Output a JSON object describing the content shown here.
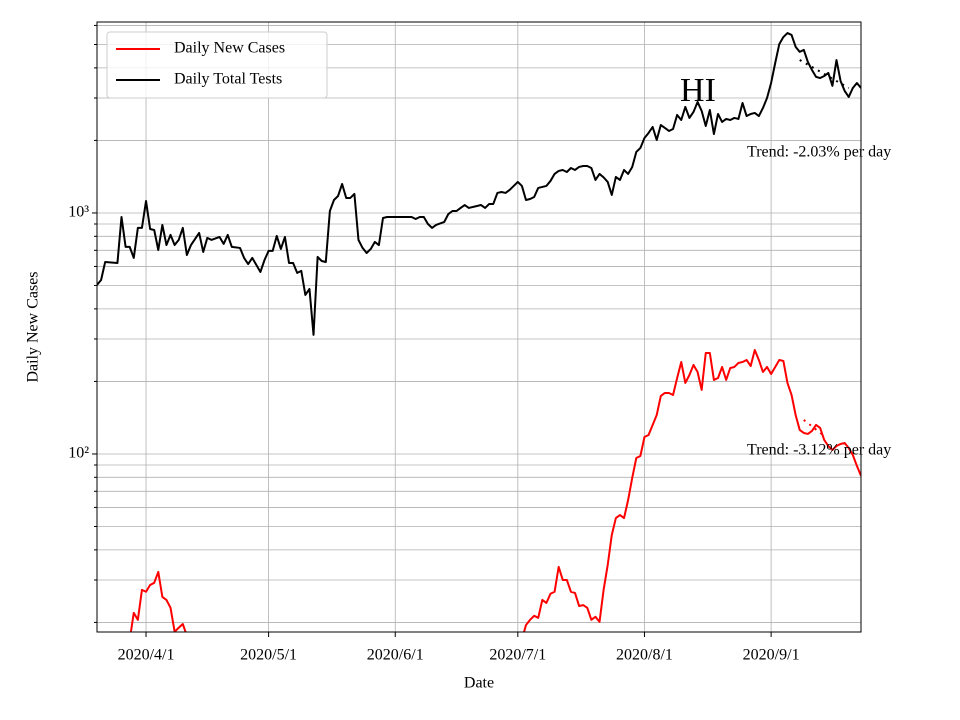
{
  "chart_data": {
    "type": "line",
    "title": "HI",
    "x_label": "Date",
    "y_label": "Daily New Cases",
    "log_y": true,
    "grid": true,
    "legend": "upper left",
    "xlim": [
      "2020-03-20",
      "2020-09-23"
    ],
    "xticks": [
      {
        "value": "2020-04-01",
        "label": "2020/4/1"
      },
      {
        "value": "2020-05-01",
        "label": "2020/5/1"
      },
      {
        "value": "2020-06-01",
        "label": "2020/6/1"
      },
      {
        "value": "2020-07-01",
        "label": "2020/7/1"
      },
      {
        "value": "2020-08-01",
        "label": "2020/8/1"
      },
      {
        "value": "2020-09-01",
        "label": "2020/9/1"
      }
    ],
    "ylim": [
      18.25,
      6200
    ],
    "yticks": [
      {
        "value": 100,
        "label": "10²"
      },
      {
        "value": 1000,
        "label": "10³"
      }
    ],
    "yminorticks": [
      20,
      30,
      40,
      50,
      60,
      70,
      80,
      90,
      200,
      300,
      400,
      500,
      600,
      700,
      800,
      900,
      2000,
      3000,
      4000,
      5000,
      6000
    ],
    "x": [
      "2020-03-20",
      "2020-03-21",
      "2020-03-22",
      "2020-03-25",
      "2020-03-26",
      "2020-03-27",
      "2020-03-28",
      "2020-03-29",
      "2020-03-30",
      "2020-03-31",
      "2020-04-01",
      "2020-04-02",
      "2020-04-03",
      "2020-04-04",
      "2020-04-05",
      "2020-04-06",
      "2020-04-07",
      "2020-04-08",
      "2020-04-09",
      "2020-04-10",
      "2020-04-11",
      "2020-04-12",
      "2020-04-14",
      "2020-04-15",
      "2020-04-16",
      "2020-04-17",
      "2020-04-19",
      "2020-04-20",
      "2020-04-21",
      "2020-04-22",
      "2020-04-24",
      "2020-04-25",
      "2020-04-26",
      "2020-04-27",
      "2020-04-29",
      "2020-04-30",
      "2020-05-01",
      "2020-05-02",
      "2020-05-03",
      "2020-05-04",
      "2020-05-05",
      "2020-05-06",
      "2020-05-07",
      "2020-05-08",
      "2020-05-09",
      "2020-05-10",
      "2020-05-11",
      "2020-05-12",
      "2020-05-13",
      "2020-05-14",
      "2020-05-15",
      "2020-05-16",
      "2020-05-17",
      "2020-05-18",
      "2020-05-19",
      "2020-05-20",
      "2020-05-21",
      "2020-05-22",
      "2020-05-23",
      "2020-05-24",
      "2020-05-25",
      "2020-05-26",
      "2020-05-27",
      "2020-05-28",
      "2020-05-29",
      "2020-05-30",
      "2020-06-01",
      "2020-06-03",
      "2020-06-05",
      "2020-06-06",
      "2020-06-07",
      "2020-06-08",
      "2020-06-09",
      "2020-06-10",
      "2020-06-11",
      "2020-06-13",
      "2020-06-14",
      "2020-06-15",
      "2020-06-16",
      "2020-06-17",
      "2020-06-18",
      "2020-06-19",
      "2020-06-21",
      "2020-06-22",
      "2020-06-23",
      "2020-06-24",
      "2020-06-25",
      "2020-06-26",
      "2020-06-27",
      "2020-06-28",
      "2020-06-29",
      "2020-06-30",
      "2020-07-01",
      "2020-07-02",
      "2020-07-03",
      "2020-07-04",
      "2020-07-05",
      "2020-07-06",
      "2020-07-07",
      "2020-07-08",
      "2020-07-09",
      "2020-07-10",
      "2020-07-11",
      "2020-07-12",
      "2020-07-13",
      "2020-07-14",
      "2020-07-15",
      "2020-07-16",
      "2020-07-17",
      "2020-07-18",
      "2020-07-19",
      "2020-07-20",
      "2020-07-21",
      "2020-07-22",
      "2020-07-23",
      "2020-07-24",
      "2020-07-25",
      "2020-07-26",
      "2020-07-27",
      "2020-07-28",
      "2020-07-29",
      "2020-07-30",
      "2020-07-31",
      "2020-08-01",
      "2020-08-02",
      "2020-08-03",
      "2020-08-04",
      "2020-08-05",
      "2020-08-06",
      "2020-08-07",
      "2020-08-08",
      "2020-08-09",
      "2020-08-10",
      "2020-08-11",
      "2020-08-12",
      "2020-08-13",
      "2020-08-14",
      "2020-08-15",
      "2020-08-16",
      "2020-08-17",
      "2020-08-18",
      "2020-08-19",
      "2020-08-20",
      "2020-08-21",
      "2020-08-22",
      "2020-08-23",
      "2020-08-24",
      "2020-08-25",
      "2020-08-26",
      "2020-08-27",
      "2020-08-28",
      "2020-08-29",
      "2020-08-30",
      "2020-08-31",
      "2020-09-01",
      "2020-09-02",
      "2020-09-03",
      "2020-09-04",
      "2020-09-05",
      "2020-09-06",
      "2020-09-07",
      "2020-09-08",
      "2020-09-09",
      "2020-09-10",
      "2020-09-11",
      "2020-09-12",
      "2020-09-13",
      "2020-09-14",
      "2020-09-15",
      "2020-09-16",
      "2020-09-17",
      "2020-09-18",
      "2020-09-19",
      "2020-09-20",
      "2020-09-21",
      "2020-09-22",
      "2020-09-23"
    ],
    "series": [
      {
        "name": "Daily New Cases",
        "color": "#ff0000",
        "values": [
          null,
          null,
          null,
          null,
          null,
          null,
          16.9,
          21.9,
          20.5,
          27.3,
          26.8,
          28.6,
          29.2,
          32.4,
          25.5,
          24.8,
          23.0,
          18.3,
          19.0,
          19.7,
          17.6,
          null,
          null,
          null,
          null,
          null,
          null,
          null,
          null,
          null,
          null,
          null,
          null,
          null,
          null,
          null,
          null,
          null,
          null,
          null,
          null,
          null,
          null,
          null,
          null,
          null,
          null,
          null,
          null,
          null,
          null,
          null,
          null,
          null,
          null,
          null,
          null,
          null,
          null,
          null,
          null,
          null,
          null,
          null,
          null,
          null,
          null,
          null,
          null,
          null,
          null,
          null,
          null,
          null,
          null,
          null,
          null,
          null,
          null,
          null,
          null,
          null,
          null,
          null,
          null,
          null,
          null,
          null,
          null,
          null,
          null,
          null,
          null,
          17.0,
          19.5,
          20.5,
          21.3,
          20.9,
          24.8,
          24.1,
          26.3,
          26.8,
          34.0,
          30.0,
          30.0,
          26.8,
          26.5,
          23.4,
          23.6,
          23.0,
          20.5,
          21.1,
          20.1,
          27.3,
          34.6,
          46.1,
          54.2,
          55.8,
          54.2,
          64.4,
          79.5,
          96.2,
          98.1,
          117.6,
          119.9,
          131.9,
          145.1,
          174.1,
          179.1,
          179.1,
          175.7,
          206.7,
          240.8,
          197.1,
          212.6,
          234.1,
          218.9,
          184.4,
          262.5,
          262.5,
          202.8,
          206.7,
          229.6,
          202.8,
          227.4,
          229.6,
          238.6,
          240.8,
          245.5,
          231.7,
          270.1,
          245.5,
          218.9,
          229.6,
          214.7,
          229.6,
          245.5,
          243.1,
          197.1,
          175.7,
          145.1,
          125.8,
          122.2,
          121.1,
          124.6,
          131.9,
          128.2,
          114.3,
          107.9,
          103.9,
          107.9,
          110.0,
          111.1,
          105.9,
          99.0,
          89.2,
          81.1
        ]
      },
      {
        "name": "Daily Total Tests",
        "color": "#000000",
        "values": [
          503,
          527,
          626,
          620,
          962,
          723,
          723,
          651,
          867,
          867,
          1121,
          858,
          850,
          702,
          892,
          736,
          811,
          736,
          773,
          867,
          669,
          736,
          826,
          689,
          788,
          773,
          795,
          744,
          811,
          723,
          716,
          651,
          614,
          651,
          569,
          638,
          696,
          696,
          803,
          709,
          795,
          620,
          620,
          564,
          575,
          457,
          484,
          312,
          657,
          632,
          626,
          1019,
          1132,
          1176,
          1319,
          1154,
          1154,
          1199,
          773,
          716,
          682,
          709,
          758,
          736,
          953,
          962,
          962,
          962,
          962,
          944,
          962,
          962,
          900,
          867,
          892,
          918,
          990,
          1019,
          1019,
          1049,
          1079,
          1049,
          1069,
          1079,
          1049,
          1090,
          1090,
          1211,
          1222,
          1211,
          1246,
          1295,
          1345,
          1295,
          1132,
          1143,
          1165,
          1270,
          1282,
          1295,
          1358,
          1452,
          1494,
          1508,
          1479,
          1537,
          1508,
          1552,
          1566,
          1566,
          1537,
          1371,
          1452,
          1405,
          1345,
          1188,
          1411,
          1371,
          1508,
          1452,
          1552,
          1791,
          1861,
          2047,
          2147,
          2274,
          2009,
          2317,
          2253,
          2189,
          2231,
          2551,
          2431,
          2754,
          2479,
          2625,
          2888,
          2651,
          2296,
          2675,
          2126,
          2575,
          2386,
          2455,
          2431,
          2479,
          2455,
          2860,
          2525,
          2575,
          2600,
          2525,
          2727,
          3000,
          3463,
          4190,
          5020,
          5370,
          5580,
          5480,
          4890,
          4660,
          4750,
          4230,
          3920,
          3670,
          3630,
          3700,
          3810,
          3370,
          4310,
          3530,
          3210,
          3030,
          3300,
          3460,
          3300
        ]
      }
    ],
    "trend_lines": [
      {
        "color": "#000000",
        "x": [
          "2020-09-08",
          "2020-09-20"
        ],
        "values": [
          4313,
          3300
        ]
      },
      {
        "color": "#ff0000",
        "x": [
          "2020-09-09",
          "2020-09-14"
        ],
        "values": [
          138.4,
          118.8
        ]
      }
    ],
    "annotations": [
      {
        "text": "Trend: -2.03% per day"
      },
      {
        "text": "Trend: -3.12% per day"
      }
    ]
  }
}
